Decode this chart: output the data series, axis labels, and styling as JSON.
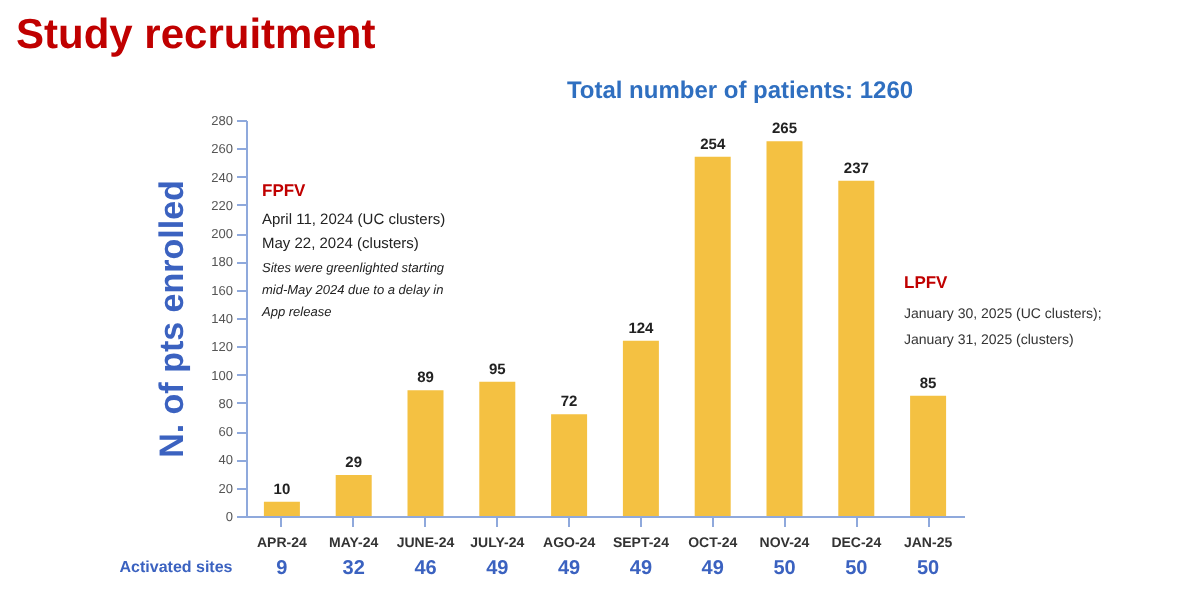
{
  "chart_data": {
    "type": "bar",
    "title": "Study recruitment",
    "subtitle": "Total number of patients: 1260",
    "ylabel": "N. of pts enrolled",
    "categories": [
      "APR-24",
      "MAY-24",
      "JUNE-24",
      "JULY-24",
      "AGO-24",
      "SEPT-24",
      "OCT-24",
      "NOV-24",
      "DEC-24",
      "JAN-25"
    ],
    "values": [
      10,
      29,
      89,
      95,
      72,
      124,
      254,
      265,
      237,
      85
    ],
    "color": "#f4c142",
    "data_labels": true,
    "ylim": [
      0,
      280
    ],
    "yticks": [
      0,
      20,
      40,
      60,
      80,
      100,
      120,
      140,
      160,
      180,
      200,
      220,
      240,
      260,
      280
    ],
    "grid": false,
    "annotations": [
      "FPFV",
      "April 11, 2024 (UC clusters)",
      "May 22, 2024 (clusters)",
      "Sites were greenlighted starting",
      "mid-May 2024 due to a delay in",
      "App release",
      "LPFV",
      "January 30, 2025 (UC clusters);",
      "January 31, 2025 (clusters)",
      "Activated sites",
      "9",
      "32",
      "46",
      "49",
      "49",
      "49",
      "49",
      "50",
      "50",
      "50"
    ]
  }
}
